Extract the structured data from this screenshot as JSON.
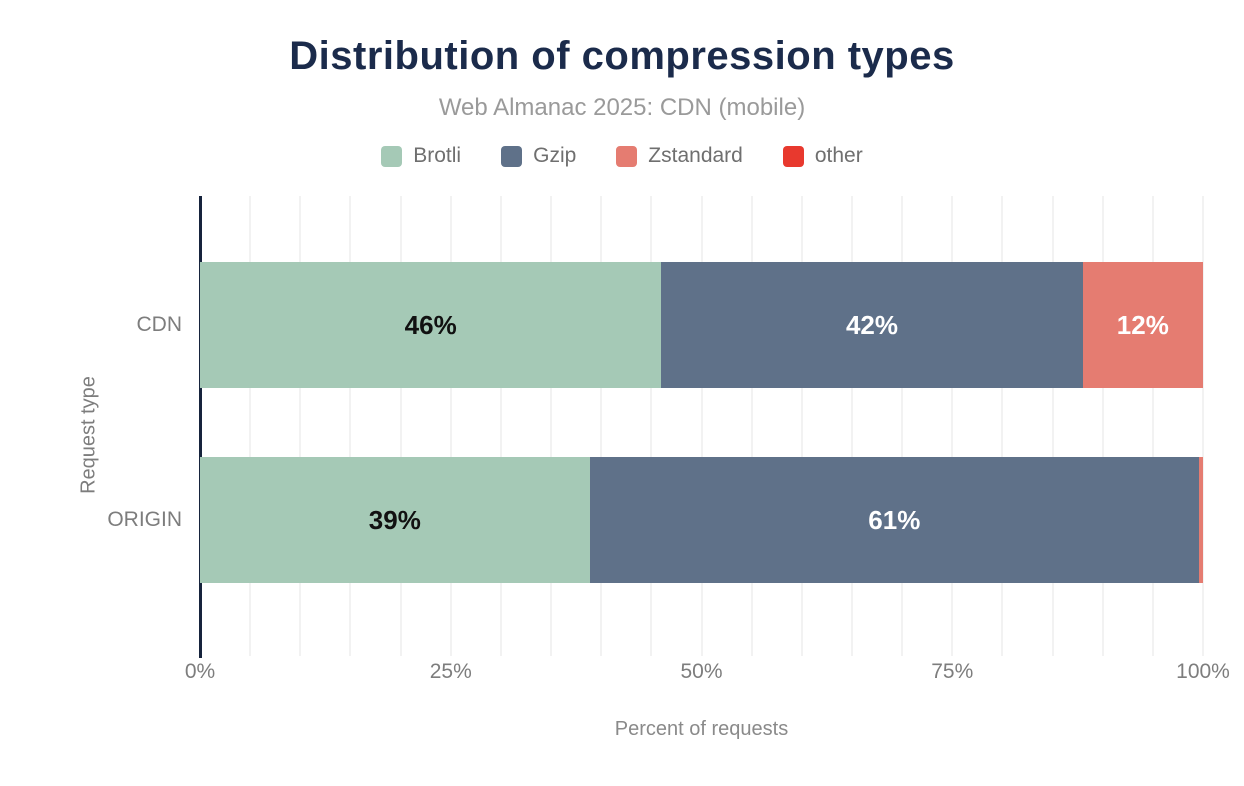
{
  "chart_data": {
    "type": "bar",
    "orientation": "horizontal",
    "stacked": true,
    "title": "Distribution of compression types",
    "subtitle": "Web Almanac 2025: CDN (mobile)",
    "xlabel": "Percent of requests",
    "ylabel": "Request type",
    "xlim": [
      0,
      100
    ],
    "grid": "vertical gridlines every 5%",
    "legend_position": "top",
    "categories": [
      "CDN",
      "ORIGIN"
    ],
    "series": [
      {
        "name": "Brotli",
        "color": "#a5c9b6",
        "label_color": "#111111",
        "values": [
          46,
          39
        ]
      },
      {
        "name": "Gzip",
        "color": "#5f7189",
        "label_color": "#ffffff",
        "values": [
          42,
          61
        ]
      },
      {
        "name": "Zstandard",
        "color": "#e57c71",
        "label_color": "#ffffff",
        "values": [
          12,
          0.4
        ]
      },
      {
        "name": "other",
        "color": "#e8392e",
        "label_color": "#ffffff",
        "values": [
          0,
          0
        ]
      }
    ],
    "value_labels_shown": {
      "CDN": [
        "46%",
        "42%",
        "12%"
      ],
      "ORIGIN": [
        "39%",
        "61%"
      ]
    },
    "label_threshold": 5,
    "label_format": "{value}%",
    "x_ticks": [
      {
        "value": 0,
        "label": "0%"
      },
      {
        "value": 25,
        "label": "25%"
      },
      {
        "value": 50,
        "label": "50%"
      },
      {
        "value": 75,
        "label": "75%"
      },
      {
        "value": 100,
        "label": "100%"
      }
    ],
    "colors": {
      "title": "#1b2b4b",
      "subtitle": "#9a9a9a",
      "axis_line": "#16233c",
      "gridline": "#f2f2f2",
      "tick_label": "#7d7d7d",
      "legend_label": "#6f6f6f",
      "background": "#ffffff"
    }
  }
}
